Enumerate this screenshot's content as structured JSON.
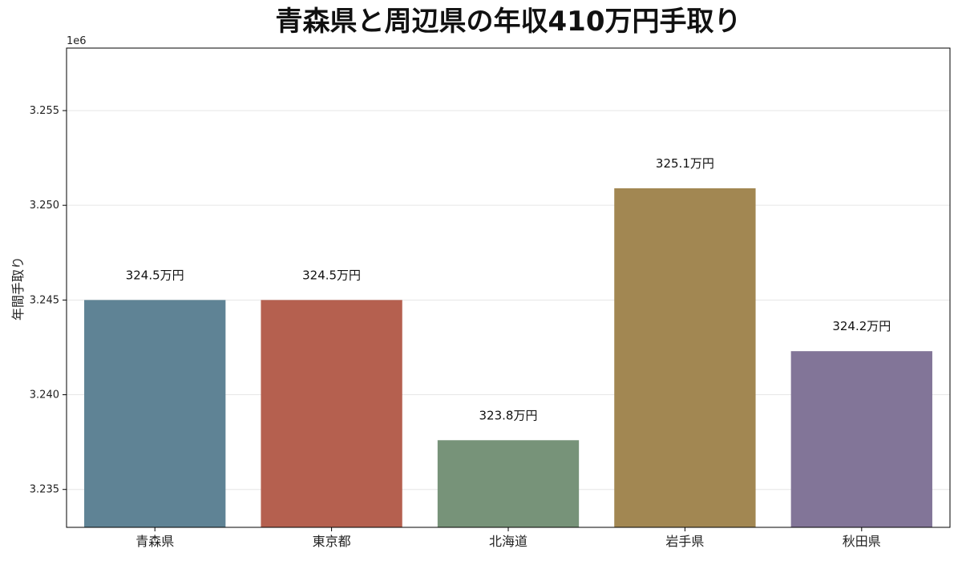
{
  "chart_data": {
    "type": "bar",
    "title": "青森県と周辺県の年収410万円手取り",
    "xlabel": "",
    "ylabel": "年間手取り",
    "y_offset_label": "1e6",
    "categories": [
      "青森県",
      "東京都",
      "北海道",
      "岩手県",
      "秋田県"
    ],
    "values": [
      3245000,
      3245000,
      3237600,
      3250900,
      3242300
    ],
    "data_labels": [
      "324.5万円",
      "324.5万円",
      "323.8万円",
      "325.1万円",
      "324.2万円"
    ],
    "colors": [
      "#5f8395",
      "#b5604f",
      "#779379",
      "#a28752",
      "#827598"
    ],
    "ylim": [
      3233000,
      3258300
    ],
    "yticks": [
      3235000,
      3240000,
      3245000,
      3250000,
      3255000
    ],
    "ytick_labels": [
      "3.235",
      "3.240",
      "3.245",
      "3.250",
      "3.255"
    ],
    "grid": true,
    "legend": "none"
  }
}
